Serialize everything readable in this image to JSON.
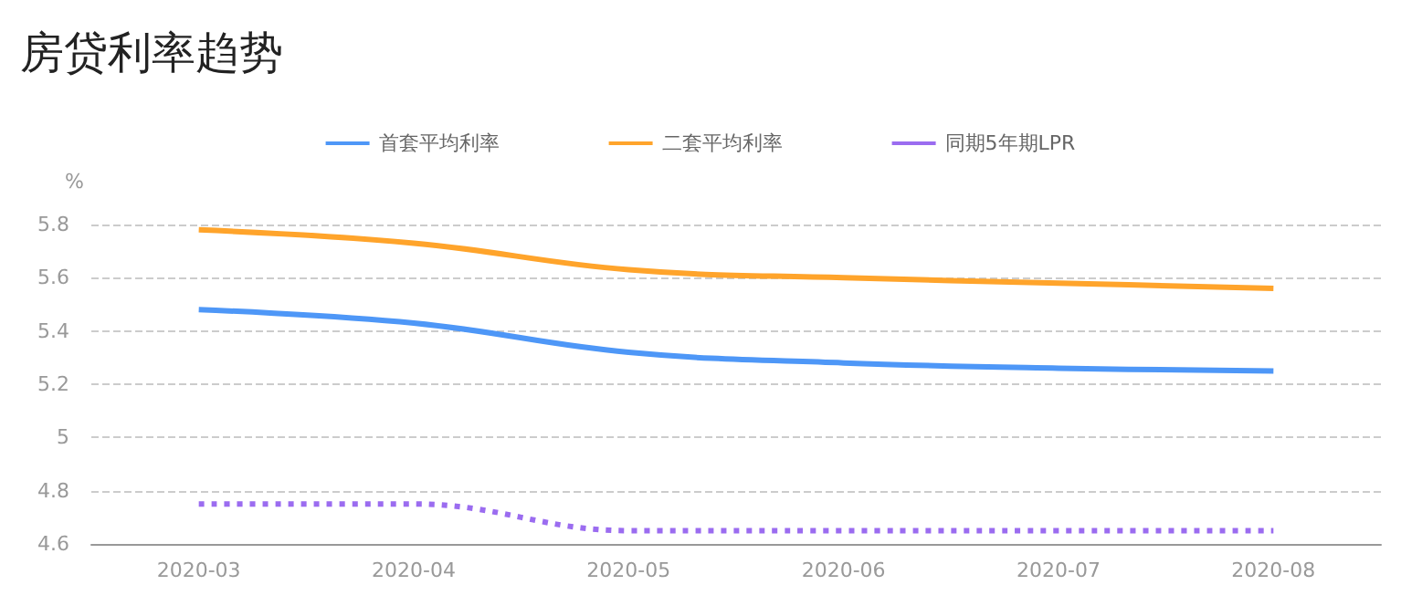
{
  "chart_data": {
    "type": "line",
    "title": "房贷利率趋势",
    "ylabel": "%",
    "categories": [
      "2020-03",
      "2020-04",
      "2020-05",
      "2020-06",
      "2020-07",
      "2020-08"
    ],
    "series": [
      {
        "name": "首套平均利率",
        "color": "#4e97f7",
        "values": [
          5.48,
          5.43,
          5.32,
          5.28,
          5.26,
          5.25
        ]
      },
      {
        "name": "二套平均利率",
        "color": "#ffa42b",
        "values": [
          5.78,
          5.73,
          5.63,
          5.6,
          5.58,
          5.56
        ]
      },
      {
        "name": "同期5年期LPR",
        "color": "#9b6cf0",
        "line_style": "dotted",
        "values": [
          4.75,
          4.75,
          4.65,
          4.65,
          4.65,
          4.65
        ]
      }
    ],
    "ylim": [
      4.6,
      5.8
    ],
    "yticks": [
      4.6,
      4.8,
      5,
      5.2,
      5.4,
      5.6,
      5.8
    ],
    "grid": "y",
    "legend": "top",
    "marker": "none",
    "line_style": "solid"
  }
}
